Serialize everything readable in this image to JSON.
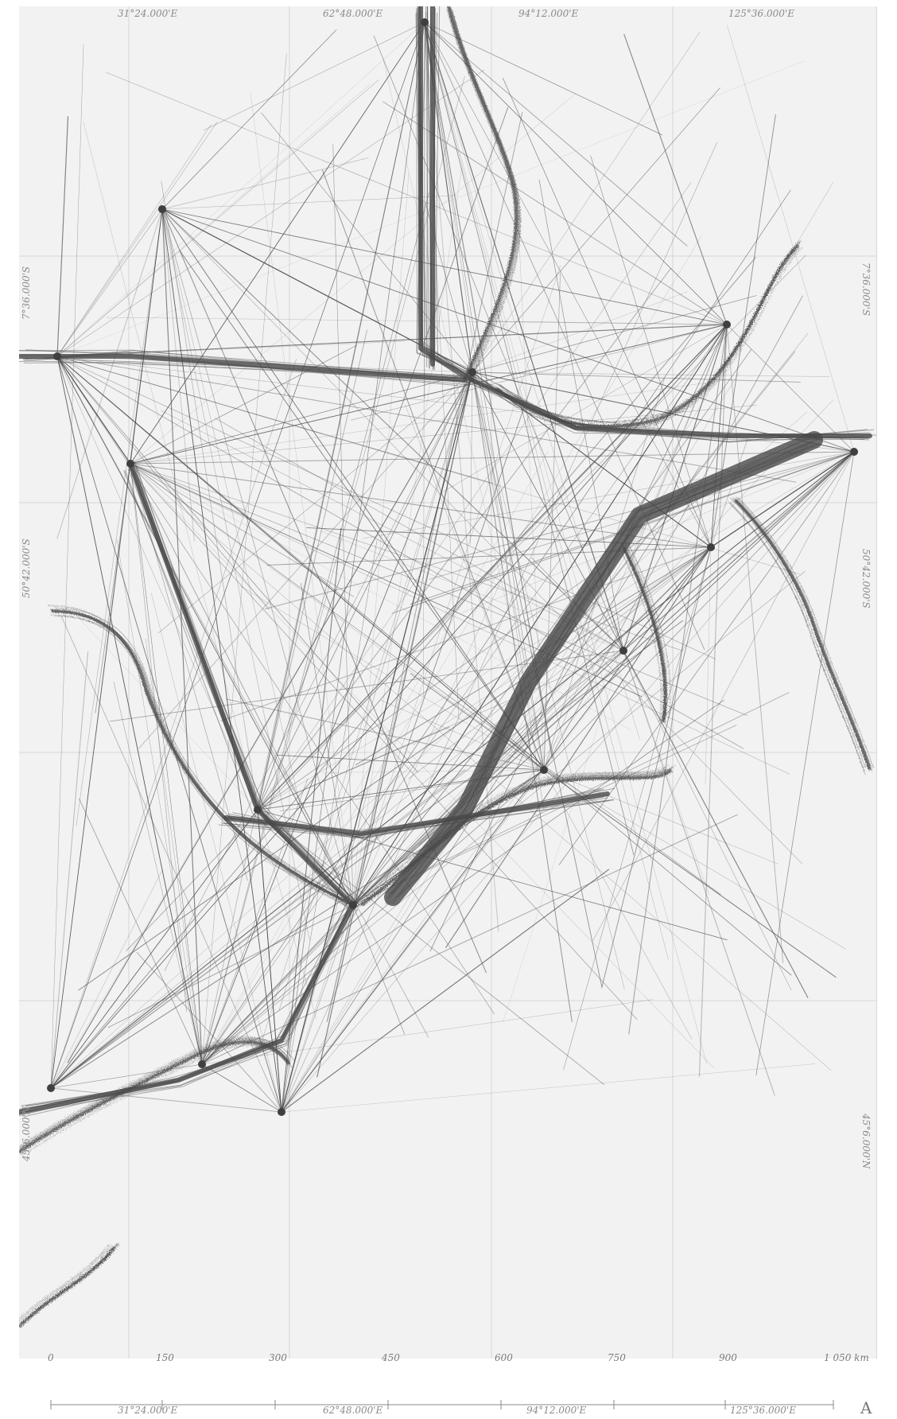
{
  "map": {
    "colors": {
      "sea": "#f2f2f2",
      "tracks": "#4a4a4a",
      "grid": "#cfcfcf",
      "label": "#8a8a8a"
    },
    "top_coords": [
      "31°24.000'E",
      "62°48.000'E",
      "94°12.000'E",
      "125°36.000'E"
    ],
    "bottom_coords": [
      "31°24.000'E",
      "62°48.000'E",
      "94°12.000'E",
      "125°36.000'E"
    ],
    "left_coords": [
      "7°36.000'S",
      "50°42.000'S",
      "45°6.000'N"
    ],
    "right_coords": [
      "7°36.000'S",
      "50°42.000'S",
      "45°6.000'N"
    ],
    "scale": {
      "ticks": [
        "0",
        "150",
        "300",
        "450",
        "600",
        "750",
        "900",
        "1 050 km"
      ]
    },
    "north_label": "A"
  }
}
